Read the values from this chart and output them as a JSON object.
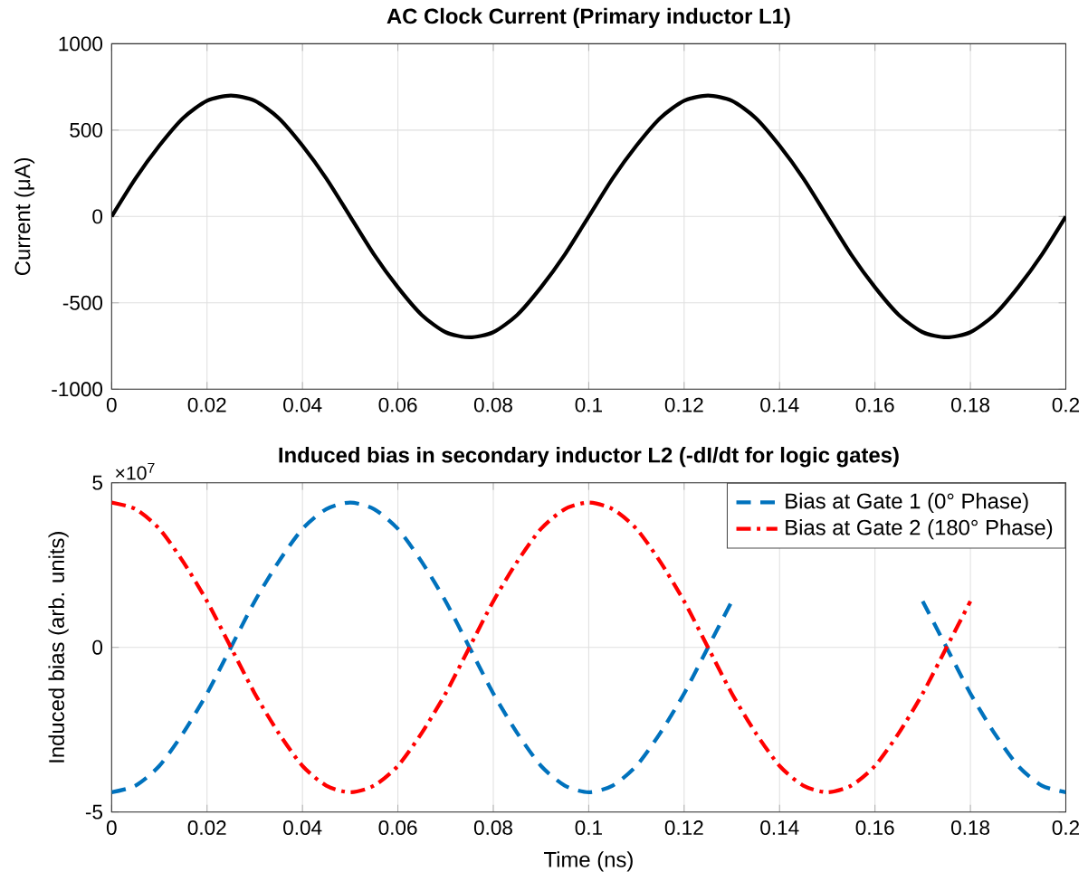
{
  "chart_data": [
    {
      "type": "line",
      "title": "**AC Clock Current (Primary inductor L1)**",
      "ylabel": "Current (μA)",
      "x": [
        0,
        0.005,
        0.01,
        0.015,
        0.02,
        0.025,
        0.03,
        0.035,
        0.04,
        0.045,
        0.05,
        0.055,
        0.06,
        0.065,
        0.07,
        0.075,
        0.08,
        0.085,
        0.09,
        0.095,
        0.1,
        0.105,
        0.11,
        0.115,
        0.12,
        0.125,
        0.13,
        0.135,
        0.14,
        0.145,
        0.15,
        0.155,
        0.16,
        0.165,
        0.17,
        0.175,
        0.18,
        0.185,
        0.19,
        0.195,
        0.2
      ],
      "series": [
        {
          "color": "#000000",
          "values": [
            0,
            220,
            410,
            570,
            670,
            700,
            670,
            570,
            410,
            220,
            0,
            -220,
            -410,
            -570,
            -670,
            -700,
            -670,
            -570,
            -410,
            -220,
            0,
            220,
            410,
            570,
            670,
            700,
            670,
            570,
            410,
            220,
            0,
            -220,
            -410,
            -570,
            -670,
            -700,
            -670,
            -570,
            -410,
            -220,
            0
          ]
        }
      ],
      "xlim": [
        0,
        0.2
      ],
      "ylim": [
        -1000,
        1000
      ],
      "xticks": [
        0,
        0.02,
        0.04,
        0.06,
        0.08,
        0.1,
        0.12,
        0.14,
        0.16,
        0.18,
        0.2
      ],
      "yticks": [
        -1000,
        -500,
        0,
        500,
        1000
      ],
      "grid": true,
      "legend": false,
      "line_style": "solid"
    },
    {
      "type": "line",
      "title": "**Induced bias in secondary inductor L2 (-dI/dt for logic gates)**",
      "xlabel": "Time (ns)",
      "ylabel": "Induced bias (arb. units)",
      "annotations": [
        "×10$^{7}$"
      ],
      "x": [
        0,
        0.005,
        0.01,
        0.015,
        0.02,
        0.025,
        0.03,
        0.035,
        0.04,
        0.045,
        0.05,
        0.055,
        0.06,
        0.065,
        0.07,
        0.075,
        0.08,
        0.085,
        0.09,
        0.095,
        0.1,
        0.105,
        0.11,
        0.115,
        0.12,
        0.125,
        0.13,
        0.135,
        0.14,
        0.145,
        0.15,
        0.155,
        0.16,
        0.165,
        0.17,
        0.175,
        0.18,
        0.185,
        0.19,
        0.195,
        0.2
      ],
      "series": [
        {
          "name": "Bias at Gate 1 (0° Phase)",
          "color": "#0072bd",
          "line_style": "dashed",
          "values": [
            -4.4,
            -4.2,
            -3.6,
            -2.6,
            -1.4,
            0,
            1.4,
            2.6,
            3.6,
            4.2,
            4.4,
            4.2,
            3.6,
            2.6,
            1.4,
            0,
            -1.4,
            -2.6,
            -3.6,
            -4.2,
            -4.4,
            -4.2,
            -3.6,
            -2.6,
            -1.4,
            0,
            1.4,
            null,
            null,
            null,
            null,
            null,
            null,
            null,
            1.4,
            0,
            -1.4,
            -2.6,
            -3.6,
            -4.2,
            -4.4
          ]
        },
        {
          "name": "Bias at Gate 2 (180° Phase)",
          "color": "#ff0000",
          "line_style": "dashdot",
          "values": [
            4.4,
            4.2,
            3.6,
            2.6,
            1.4,
            0,
            -1.4,
            -2.6,
            -3.6,
            -4.2,
            -4.4,
            -4.2,
            -3.6,
            -2.6,
            -1.4,
            0,
            1.4,
            2.6,
            3.6,
            4.2,
            4.4,
            4.2,
            3.6,
            2.6,
            1.4,
            0,
            -1.4,
            -2.6,
            -3.6,
            -4.2,
            -4.4,
            -4.2,
            -3.6,
            -2.6,
            -1.4,
            0,
            1.4,
            null,
            null,
            null,
            null
          ]
        }
      ],
      "xlim": [
        0,
        0.2
      ],
      "ylim": [
        -5,
        5
      ],
      "xticks": [
        0,
        0.02,
        0.04,
        0.06,
        0.08,
        0.1,
        0.12,
        0.14,
        0.16,
        0.18,
        0.2
      ],
      "yticks": [
        -5,
        0,
        5
      ],
      "grid": true,
      "legend": "top right"
    }
  ]
}
